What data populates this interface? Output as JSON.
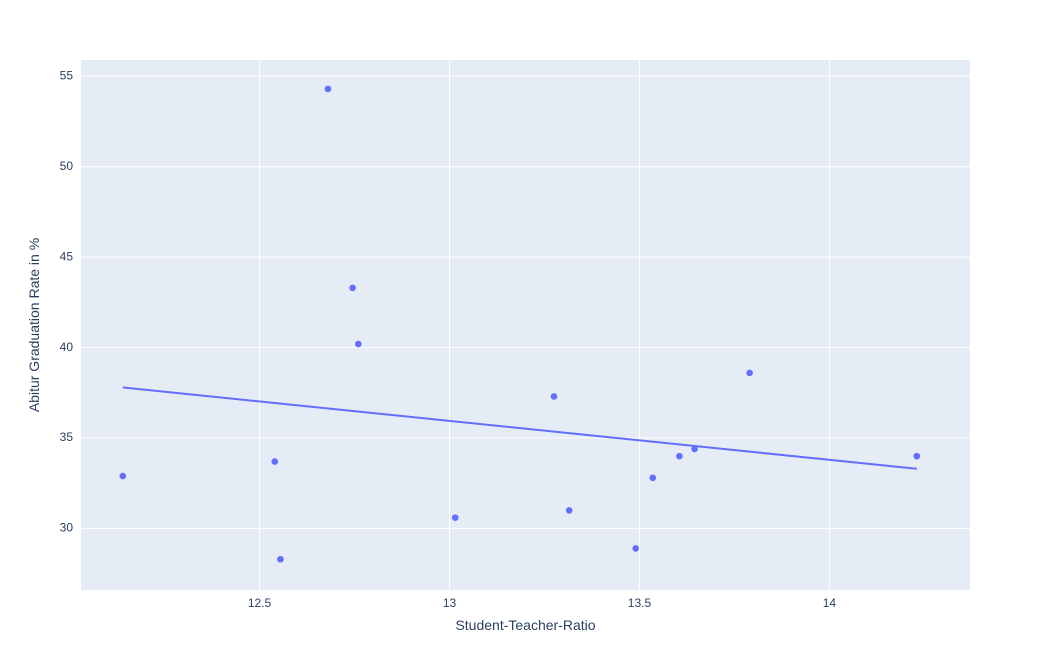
{
  "chart_data": {
    "type": "scatter",
    "title": "",
    "xlabel": "Student-Teacher-Ratio",
    "ylabel": "Abitur Graduation Rate in %",
    "xlim": [
      12.03,
      14.37
    ],
    "ylim": [
      26.6,
      55.9
    ],
    "xticks": [
      12.5,
      13,
      13.5,
      14
    ],
    "xtick_labels": [
      "12.5",
      "13",
      "13.5",
      "14"
    ],
    "yticks": [
      30,
      35,
      40,
      45,
      50,
      55
    ],
    "ytick_labels": [
      "30",
      "35",
      "40",
      "45",
      "50",
      "55"
    ],
    "grid": true,
    "legend": "none",
    "series": [
      {
        "type": "scatter",
        "x": [
          12.14,
          12.54,
          12.555,
          12.68,
          12.745,
          12.76,
          13.015,
          13.275,
          13.315,
          13.49,
          13.535,
          13.605,
          13.645,
          13.79,
          14.23
        ],
        "y": [
          32.9,
          33.7,
          28.3,
          54.3,
          43.3,
          40.2,
          30.6,
          37.3,
          31.0,
          28.9,
          32.8,
          34.0,
          34.4,
          38.6,
          34.0
        ]
      },
      {
        "type": "line",
        "x": [
          12.14,
          14.23
        ],
        "y": [
          37.8,
          33.3
        ]
      }
    ],
    "colors": {
      "marker": "#636efa",
      "trend_line": "#636efa",
      "plot_bg": "#e5ecf6",
      "grid": "#ffffff",
      "text": "#2a3f5f"
    }
  }
}
